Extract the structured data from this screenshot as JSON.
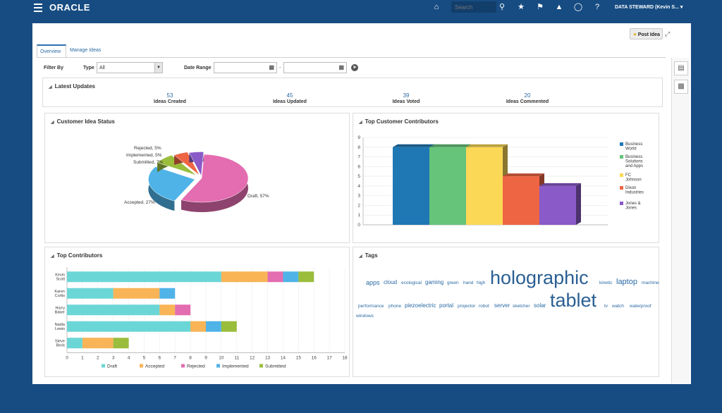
{
  "topbar": {
    "logo": "ORACLE",
    "search_placeholder": "Search",
    "user": "DATA STEWARD (Kevin S... ▾"
  },
  "header": {
    "post_idea_label": "Post Idea"
  },
  "tabs": [
    {
      "label": "Overview",
      "active": true
    },
    {
      "label": "Manage Ideas",
      "active": false
    }
  ],
  "filters": {
    "filter_by_label": "Filter By",
    "type_label": "Type",
    "type_value": "All",
    "date_range_label": "Date Range",
    "date_separator": "-"
  },
  "latest_updates": {
    "title": "Latest Updates",
    "metrics": [
      {
        "value": "53",
        "label": "Ideas Created"
      },
      {
        "value": "45",
        "label": "Ideas Updated"
      },
      {
        "value": "39",
        "label": "Ideas Voted"
      },
      {
        "value": "20",
        "label": "Ideas Commented"
      }
    ]
  },
  "panels": {
    "customer_idea_status": "Customer Idea Status",
    "top_customer_contributors": "Top Customer Contributors",
    "top_contributors": "Top Contributors",
    "tags": "Tags"
  },
  "colors": {
    "accent": "#2a6aa3",
    "nav_bg": "#174c82",
    "draft": "#6bd6d6",
    "accepted": "#f8b456",
    "rejected": "#e46cb0",
    "implemented": "#4fb3e8",
    "submitted": "#9abd3c"
  },
  "chart_data": [
    {
      "type": "pie",
      "title": "Customer Idea Status",
      "slices": [
        {
          "label": "Draft, 57%",
          "value": 57,
          "color": "#e46cb0"
        },
        {
          "label": "Accepted, 27%",
          "value": 27,
          "color": "#4fb3e8"
        },
        {
          "label": "Submitted, 7%",
          "value": 7,
          "color": "#9abd3c"
        },
        {
          "label": "Implemented, 5%",
          "value": 5,
          "color": "#ee6543"
        },
        {
          "label": "Rejected, 5%",
          "value": 5,
          "color": "#8a5ac8"
        }
      ]
    },
    {
      "type": "bar",
      "title": "Top Customer Contributors",
      "ylim": [
        0,
        9
      ],
      "yticks": [
        "0",
        "1",
        "2",
        "3",
        "4",
        "5",
        "6",
        "7",
        "8",
        "9"
      ],
      "series": [
        {
          "name": "Business World",
          "value": 8,
          "color": "#1f78b4"
        },
        {
          "name": "Business Solutions and Apps",
          "value": 8,
          "color": "#66c47a"
        },
        {
          "name": "FC Johnson",
          "value": 8,
          "color": "#fbd855"
        },
        {
          "name": "Dixon Industries",
          "value": 5,
          "color": "#ee6543"
        },
        {
          "name": "Jones & Jones",
          "value": 4,
          "color": "#8a5ac8"
        }
      ],
      "legend": "right"
    },
    {
      "type": "bar",
      "orientation": "horizontal",
      "stacked": true,
      "title": "Top Contributors",
      "categories": [
        "Kevin Scott",
        "Karen Curtis",
        "Harry Baker",
        "Nadia Lewis",
        "Steve Beck"
      ],
      "xlim": [
        0,
        18
      ],
      "xticks": [
        "0",
        "1",
        "2",
        "3",
        "4",
        "5",
        "6",
        "7",
        "8",
        "9",
        "10",
        "11",
        "12",
        "13",
        "14",
        "15",
        "16",
        "17",
        "18"
      ],
      "series": [
        {
          "name": "Draft",
          "values": [
            10,
            3,
            6,
            8,
            1
          ],
          "color": "#6bd6d6"
        },
        {
          "name": "Accepted",
          "values": [
            3,
            3,
            1,
            1,
            2
          ],
          "color": "#f8b456"
        },
        {
          "name": "Rejected",
          "values": [
            1,
            0,
            1,
            0,
            0
          ],
          "color": "#e46cb0"
        },
        {
          "name": "Implemented",
          "values": [
            1,
            1,
            0,
            1,
            0
          ],
          "color": "#4fb3e8"
        },
        {
          "name": "Submitted",
          "values": [
            1,
            0,
            0,
            1,
            1
          ],
          "color": "#9abd3c"
        }
      ],
      "legend": "bottom"
    }
  ],
  "tag_cloud": [
    {
      "text": "apps",
      "weight": 3
    },
    {
      "text": "cloud",
      "weight": 2
    },
    {
      "text": "ecological",
      "weight": 1
    },
    {
      "text": "gaming",
      "weight": 2
    },
    {
      "text": "green",
      "weight": 1
    },
    {
      "text": "hand",
      "weight": 1
    },
    {
      "text": "high",
      "weight": 1
    },
    {
      "text": "holographic",
      "weight": 10
    },
    {
      "text": "kinetic",
      "weight": 1
    },
    {
      "text": "laptop",
      "weight": 4
    },
    {
      "text": "machine",
      "weight": 1
    },
    {
      "text": "performance",
      "weight": 1
    },
    {
      "text": "phone",
      "weight": 1
    },
    {
      "text": "piezoelectric",
      "weight": 2
    },
    {
      "text": "portal",
      "weight": 2
    },
    {
      "text": "projector",
      "weight": 1
    },
    {
      "text": "robot",
      "weight": 1
    },
    {
      "text": "server",
      "weight": 2
    },
    {
      "text": "sketcher",
      "weight": 1
    },
    {
      "text": "solar",
      "weight": 2
    },
    {
      "text": "tablet",
      "weight": 10
    },
    {
      "text": "tv",
      "weight": 1
    },
    {
      "text": "watch",
      "weight": 1
    },
    {
      "text": "waterproof",
      "weight": 1
    },
    {
      "text": "windows",
      "weight": 1
    }
  ]
}
